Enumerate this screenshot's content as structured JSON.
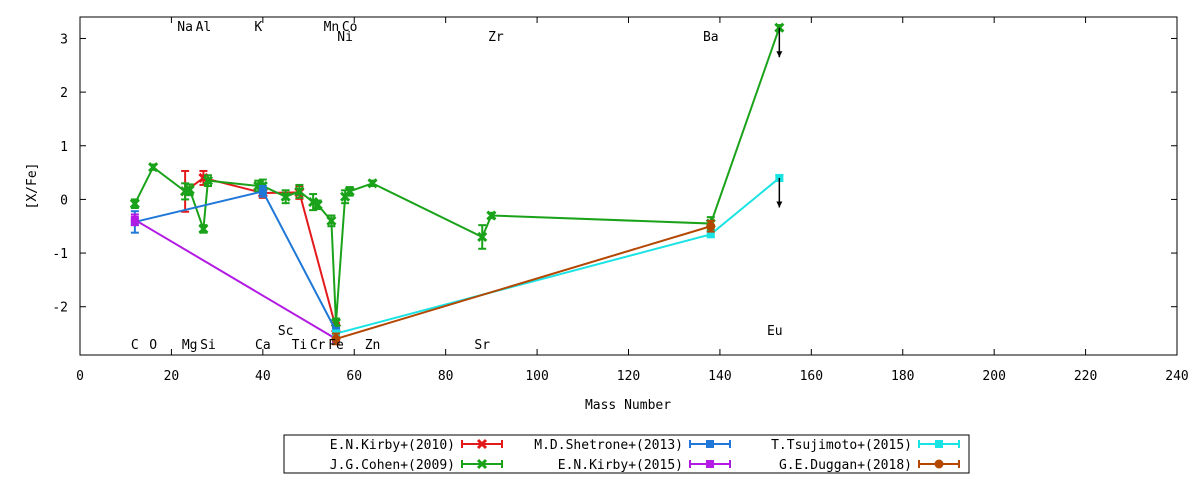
{
  "chart_data": {
    "type": "line",
    "xlabel": "Mass Number",
    "ylabel": "[X/Fe]",
    "xlim": [
      0,
      240
    ],
    "ylim": [
      -2.9,
      3.4
    ],
    "xticks": [
      0,
      20,
      40,
      60,
      80,
      100,
      120,
      140,
      160,
      180,
      200,
      220,
      240
    ],
    "yticks": [
      3,
      2,
      1,
      0,
      -1,
      -2
    ],
    "xtick_labels": [
      "0",
      "20",
      "40",
      "60",
      "80",
      "100",
      "120",
      "140",
      "160",
      "180",
      "200",
      "220",
      "240"
    ],
    "ytick_labels": [
      "3",
      "2",
      "1",
      "0",
      "-1",
      "-2"
    ],
    "grid": false,
    "legend_position": "bottom-center",
    "element_labels_top": [
      {
        "text": "Na",
        "x": 23,
        "row": 1
      },
      {
        "text": "Al",
        "x": 27,
        "row": 1
      },
      {
        "text": "K",
        "x": 39,
        "row": 1
      },
      {
        "text": "Mn",
        "x": 55,
        "row": 1
      },
      {
        "text": "Co",
        "x": 59,
        "row": 1
      },
      {
        "text": "Ni",
        "x": 58,
        "row": 2
      },
      {
        "text": "Zr",
        "x": 91,
        "row": 2
      },
      {
        "text": "Ba",
        "x": 138,
        "row": 2
      }
    ],
    "element_labels_bottom": [
      {
        "text": "Sc",
        "x": 45,
        "row": 1
      },
      {
        "text": "Eu",
        "x": 152,
        "row": 1
      },
      {
        "text": "C",
        "x": 12,
        "row": 2
      },
      {
        "text": "O",
        "x": 16,
        "row": 2
      },
      {
        "text": "Mg",
        "x": 24,
        "row": 2
      },
      {
        "text": "Si",
        "x": 28,
        "row": 2
      },
      {
        "text": "Ca",
        "x": 40,
        "row": 2
      },
      {
        "text": "Ti",
        "x": 48,
        "row": 2
      },
      {
        "text": "Cr",
        "x": 52,
        "row": 2
      },
      {
        "text": "Fe",
        "x": 56,
        "row": 2
      },
      {
        "text": "Zn",
        "x": 64,
        "row": 2
      },
      {
        "text": "Sr",
        "x": 88,
        "row": 2
      }
    ],
    "series": [
      {
        "name": "E.N.Kirby+(2010)",
        "color": "#e31a1c",
        "marker": "cross",
        "points": [
          {
            "x": 23,
            "y": 0.15,
            "err": 0.38
          },
          {
            "x": 27,
            "y": 0.4,
            "err": 0.13
          },
          {
            "x": 40,
            "y": 0.12,
            "err": 0.09
          },
          {
            "x": 48,
            "y": 0.13,
            "err": 0.12
          },
          {
            "x": 56,
            "y": -2.4,
            "err": 0.1
          }
        ]
      },
      {
        "name": "J.G.Cohen+(2009)",
        "color": "#1aa31a",
        "marker": "cross",
        "points": [
          {
            "x": 12,
            "y": -0.08,
            "err": 0.08
          },
          {
            "x": 16,
            "y": 0.6,
            "err": 0.05
          },
          {
            "x": 23,
            "y": 0.15,
            "err": 0.15
          },
          {
            "x": 24,
            "y": 0.18,
            "err": 0.1
          },
          {
            "x": 27,
            "y": -0.55,
            "err": 0.07
          },
          {
            "x": 28,
            "y": 0.35,
            "err": 0.1
          },
          {
            "x": 39,
            "y": 0.25,
            "err": 0.1
          },
          {
            "x": 40,
            "y": 0.25,
            "err": 0.12
          },
          {
            "x": 45,
            "y": 0.05,
            "err": 0.12
          },
          {
            "x": 48,
            "y": 0.15,
            "err": 0.12
          },
          {
            "x": 51,
            "y": -0.05,
            "err": 0.15
          },
          {
            "x": 52,
            "y": -0.1,
            "err": 0.08
          },
          {
            "x": 55,
            "y": -0.4,
            "err": 0.1
          },
          {
            "x": 56,
            "y": -2.3,
            "err": 0.08
          },
          {
            "x": 58,
            "y": 0.05,
            "err": 0.12
          },
          {
            "x": 59,
            "y": 0.15,
            "err": 0.08
          },
          {
            "x": 64,
            "y": 0.3,
            "err": 0.05
          },
          {
            "x": 88,
            "y": -0.7,
            "err": 0.22
          },
          {
            "x": 90,
            "y": -0.3,
            "err": 0.05
          },
          {
            "x": 138,
            "y": -0.45,
            "err": 0.12
          },
          {
            "x": 153,
            "y": 3.2,
            "err": 0.05
          }
        ]
      },
      {
        "name": "M.D.Shetrone+(2013)",
        "color": "#1f78d8",
        "marker": "square",
        "points": [
          {
            "x": 12,
            "y": -0.42,
            "err": 0.2
          },
          {
            "x": 40,
            "y": 0.15,
            "err": 0.1
          },
          {
            "x": 56,
            "y": -2.45,
            "err": 0.05
          }
        ]
      },
      {
        "name": "E.N.Kirby+(2015)",
        "color": "#b31ae3",
        "marker": "square",
        "points": [
          {
            "x": 12,
            "y": -0.38,
            "err": 0.1
          },
          {
            "x": 56,
            "y": -2.6,
            "err": 0.05
          }
        ]
      },
      {
        "name": "T.Tsujimoto+(2015)",
        "color": "#1ae3e3",
        "marker": "square",
        "points": [
          {
            "x": 56,
            "y": -2.5,
            "err": 0.05
          },
          {
            "x": 138,
            "y": -0.65,
            "err": 0.05
          },
          {
            "x": 153,
            "y": 0.4,
            "err": 0.05
          }
        ]
      },
      {
        "name": "G.E.Duggan+(2018)",
        "color": "#b34700",
        "marker": "circle",
        "points": [
          {
            "x": 56,
            "y": -2.6,
            "err": 0.1
          },
          {
            "x": 138,
            "y": -0.5,
            "err": 0.1
          }
        ]
      }
    ],
    "upper_limits": [
      {
        "x": 153,
        "y": 3.2,
        "to": 2.65
      },
      {
        "x": 153,
        "y": 0.4,
        "to": -0.15
      }
    ]
  }
}
